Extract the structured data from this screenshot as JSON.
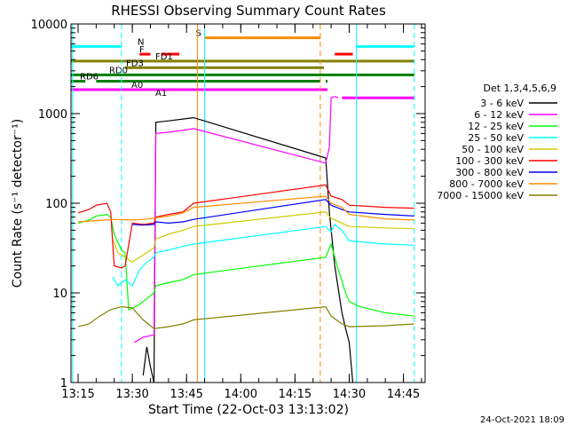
{
  "chart_data": {
    "type": "line",
    "title": "RHESSI Observing Summary Count Rates",
    "xlabel": "Start Time (22-Oct-03 13:13:02)",
    "ylabel": "Count Rate (s⁻¹ detector⁻¹)",
    "x_ticks": [
      "13:15",
      "13:30",
      "13:45",
      "14:00",
      "14:15",
      "14:30",
      "14:45"
    ],
    "y_ticks": [
      "1",
      "10",
      "100",
      "1000",
      "10000"
    ],
    "xlim": [
      "13:13:02",
      "14:51:00"
    ],
    "ylim": [
      1,
      10000
    ],
    "y_scale": "log",
    "legend_title": "Det 1,3,4,5,6,9",
    "legend_position": "right",
    "series": [
      {
        "name": "3 - 6 keV",
        "color": "#000000",
        "points": [
          [
            "13:33:00",
            1.2
          ],
          [
            "13:34:00",
            2.5
          ],
          [
            "13:35:00",
            1.5
          ],
          [
            "13:36:00",
            1.0
          ],
          [
            "13:36:30",
            800
          ],
          [
            "13:40:00",
            830
          ],
          [
            "13:44:00",
            870
          ],
          [
            "13:47:00",
            900
          ],
          [
            "14:23:30",
            320
          ],
          [
            "14:24:30",
            80
          ],
          [
            "14:26:00",
            20
          ],
          [
            "14:28:00",
            6
          ],
          [
            "14:29:00",
            4
          ],
          [
            "14:30:00",
            2.8
          ],
          [
            "14:31:00",
            1.0
          ]
        ]
      },
      {
        "name": "6 - 12 keV",
        "color": "#ff00ff",
        "points": [
          [
            "13:30:30",
            2.8
          ],
          [
            "13:33:00",
            3.2
          ],
          [
            "13:36:00",
            3.4
          ],
          [
            "13:36:30",
            600
          ],
          [
            "13:40:00",
            620
          ],
          [
            "13:44:00",
            650
          ],
          [
            "13:47:00",
            680
          ],
          [
            "14:23:30",
            280
          ],
          [
            "14:24:30",
            420
          ],
          [
            "14:25:00",
            1500
          ],
          [
            "14:26:00",
            1550
          ],
          [
            "14:27:00",
            1500
          ]
        ]
      },
      {
        "name": "12 - 25 keV",
        "color": "#00ff00",
        "points": [
          [
            "13:15:00",
            60
          ],
          [
            "13:18:00",
            65
          ],
          [
            "13:20:00",
            72
          ],
          [
            "13:23:00",
            75
          ],
          [
            "13:24:00",
            70
          ],
          [
            "13:25:00",
            45
          ],
          [
            "13:27:00",
            30
          ],
          [
            "13:28:00",
            28
          ],
          [
            "13:29:00",
            6.5
          ],
          [
            "13:31:00",
            7
          ],
          [
            "13:33:00",
            8
          ],
          [
            "13:36:00",
            10
          ],
          [
            "13:36:30",
            12
          ],
          [
            "13:40:00",
            13
          ],
          [
            "13:44:00",
            14
          ],
          [
            "13:47:00",
            16
          ],
          [
            "14:23:30",
            25
          ],
          [
            "14:25:00",
            35
          ],
          [
            "14:26:00",
            25
          ],
          [
            "14:27:00",
            18
          ],
          [
            "14:29:00",
            10
          ],
          [
            "14:30:00",
            8
          ],
          [
            "14:33:00",
            7
          ],
          [
            "14:40:00",
            6
          ],
          [
            "14:48:00",
            5.5
          ]
        ]
      },
      {
        "name": "25 - 50 keV",
        "color": "#00ffff",
        "points": [
          [
            "13:24:30",
            15
          ],
          [
            "13:26:00",
            12
          ],
          [
            "13:28:00",
            14
          ],
          [
            "13:30:00",
            12
          ],
          [
            "13:32:00",
            18
          ],
          [
            "13:34:00",
            22
          ],
          [
            "13:36:00",
            25
          ],
          [
            "13:36:30",
            28
          ],
          [
            "13:40:00",
            30
          ],
          [
            "13:44:00",
            33
          ],
          [
            "13:47:00",
            35
          ],
          [
            "14:23:30",
            55
          ],
          [
            "14:25:00",
            48
          ],
          [
            "14:26:00",
            58
          ],
          [
            "14:28:00",
            50
          ],
          [
            "14:30:00",
            38
          ],
          [
            "14:40:00",
            35
          ],
          [
            "14:48:00",
            34
          ]
        ]
      },
      {
        "name": "50 - 100 keV",
        "color": "#cccc00",
        "points": [
          [
            "13:24:30",
            40
          ],
          [
            "13:26:00",
            28
          ],
          [
            "13:28:00",
            25
          ],
          [
            "13:30:00",
            22
          ],
          [
            "13:32:00",
            25
          ],
          [
            "13:34:00",
            28
          ],
          [
            "13:36:00",
            32
          ],
          [
            "13:36:30",
            40
          ],
          [
            "13:40:00",
            45
          ],
          [
            "13:44:00",
            50
          ],
          [
            "13:47:00",
            55
          ],
          [
            "14:23:30",
            80
          ],
          [
            "14:25:00",
            68
          ],
          [
            "14:28:00",
            60
          ],
          [
            "14:30:00",
            55
          ],
          [
            "14:40:00",
            53
          ],
          [
            "14:48:00",
            52
          ]
        ]
      },
      {
        "name": "100 - 300 keV",
        "color": "#ff0000",
        "points": [
          [
            "13:15:00",
            78
          ],
          [
            "13:18:00",
            85
          ],
          [
            "13:20:00",
            95
          ],
          [
            "13:23:00",
            100
          ],
          [
            "13:24:00",
            80
          ],
          [
            "13:25:00",
            20
          ],
          [
            "13:27:00",
            19
          ],
          [
            "13:28:00",
            20
          ],
          [
            "13:30:00",
            60
          ],
          [
            "13:33:00",
            58
          ],
          [
            "13:36:00",
            60
          ],
          [
            "13:36:30",
            70
          ],
          [
            "13:40:00",
            75
          ],
          [
            "13:44:00",
            80
          ],
          [
            "13:47:00",
            100
          ],
          [
            "14:23:30",
            160
          ],
          [
            "14:25:00",
            120
          ],
          [
            "14:28:00",
            110
          ],
          [
            "14:30:00",
            95
          ],
          [
            "14:40:00",
            90
          ],
          [
            "14:48:00",
            88
          ]
        ]
      },
      {
        "name": "300 - 800 keV",
        "color": "#0000ff",
        "points": [
          [
            "13:30:00",
            58
          ],
          [
            "13:33:00",
            57
          ],
          [
            "13:36:00",
            58
          ],
          [
            "13:36:30",
            62
          ],
          [
            "13:40:00",
            60
          ],
          [
            "13:44:00",
            62
          ],
          [
            "13:47:00",
            66
          ],
          [
            "14:23:30",
            110
          ],
          [
            "14:25:00",
            95
          ],
          [
            "14:28:00",
            85
          ],
          [
            "14:30:00",
            80
          ],
          [
            "14:40:00",
            75
          ],
          [
            "14:48:00",
            72
          ]
        ]
      },
      {
        "name": "800 - 7000 keV",
        "color": "#ff8c00",
        "points": [
          [
            "13:15:00",
            62
          ],
          [
            "13:20:00",
            64
          ],
          [
            "13:25:00",
            66
          ],
          [
            "13:30:00",
            65
          ],
          [
            "13:33:00",
            66
          ],
          [
            "13:36:00",
            68
          ],
          [
            "13:40:00",
            72
          ],
          [
            "13:44:00",
            78
          ],
          [
            "13:47:00",
            90
          ],
          [
            "14:23:30",
            120
          ],
          [
            "14:25:00",
            100
          ],
          [
            "14:28:00",
            90
          ],
          [
            "14:30:00",
            75
          ],
          [
            "14:40:00",
            67
          ],
          [
            "14:48:00",
            65
          ]
        ]
      },
      {
        "name": "7000 - 15000 keV",
        "color": "#808000",
        "points": [
          [
            "13:15:00",
            4.2
          ],
          [
            "13:18:00",
            4.5
          ],
          [
            "13:21:00",
            5.5
          ],
          [
            "13:24:00",
            6.5
          ],
          [
            "13:27:00",
            7
          ],
          [
            "13:30:00",
            6.8
          ],
          [
            "13:33:00",
            5
          ],
          [
            "13:36:00",
            4
          ],
          [
            "13:40:00",
            4.2
          ],
          [
            "13:44:00",
            4.5
          ],
          [
            "13:47:00",
            5
          ],
          [
            "14:23:30",
            7
          ],
          [
            "14:25:00",
            5.5
          ],
          [
            "14:28:00",
            4.5
          ],
          [
            "14:30:00",
            4.2
          ],
          [
            "14:40:00",
            4.3
          ],
          [
            "14:48:00",
            4.5
          ]
        ]
      }
    ],
    "flag_bars": [
      {
        "label": "N",
        "color": "#00ffff",
        "y": 5600,
        "segments": [
          [
            "13:13:02",
            "13:27:00"
          ],
          [
            "14:32:00",
            "14:48:00"
          ]
        ]
      },
      {
        "label": "S",
        "color": "#ff8c00",
        "y": 7000,
        "segments": [
          [
            "13:50:00",
            "14:22:00"
          ]
        ]
      },
      {
        "label": "F",
        "color": "#ff0000",
        "y": 4600,
        "segments": [
          [
            "13:32:00",
            "13:35:00"
          ],
          [
            "13:38:00",
            "13:43:00"
          ],
          [
            "14:26:00",
            "14:31:00"
          ]
        ]
      },
      {
        "label": "FD1",
        "color": "#808000",
        "y": 3850,
        "segments": [
          [
            "13:13:02",
            "14:48:00"
          ]
        ]
      },
      {
        "label": "FD3",
        "color": "#808000",
        "y": 3250,
        "segments": [
          [
            "13:28:00",
            "14:23:00"
          ]
        ]
      },
      {
        "label": "RD0",
        "color": "#008000",
        "y": 2700,
        "segments": [
          [
            "13:13:02",
            "14:48:00"
          ]
        ]
      },
      {
        "label": "RD6",
        "color": "#008000",
        "y": 2300,
        "segments": [
          [
            "13:13:02",
            "13:17:00"
          ],
          [
            "13:20:00",
            "14:22:00"
          ],
          [
            "14:23:30",
            "14:24:00"
          ]
        ]
      },
      {
        "label": "A0",
        "color": "#ff00ff",
        "y": 1850,
        "segments": [
          [
            "13:13:02",
            "14:24:00"
          ]
        ]
      },
      {
        "label": "A1",
        "color": "#ff00ff",
        "y": 1500,
        "segments": [
          [
            "14:28:00",
            "14:48:00"
          ]
        ]
      }
    ],
    "vertical_markers": [
      {
        "time": "13:13:30",
        "color": "#00ffff",
        "style": "solid"
      },
      {
        "time": "13:27:00",
        "color": "#00ffff",
        "style": "dashed"
      },
      {
        "time": "13:48:00",
        "color": "#ff8c00",
        "style": "solid"
      },
      {
        "time": "13:50:00",
        "color": "#00ffff",
        "style": "solid"
      },
      {
        "time": "14:22:00",
        "color": "#ff8c00",
        "style": "dashed"
      },
      {
        "time": "14:32:00",
        "color": "#00ffff",
        "style": "solid"
      },
      {
        "time": "14:48:00",
        "color": "#00ffff",
        "style": "dashed"
      }
    ]
  },
  "footer": {
    "date_stamp": "24-Oct-2021 18:09"
  }
}
